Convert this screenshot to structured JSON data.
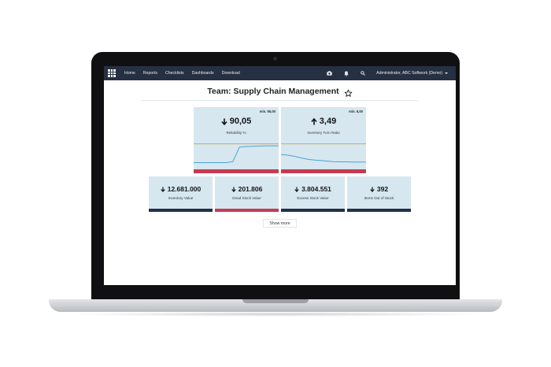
{
  "nav": {
    "items": [
      "Home",
      "Reports",
      "Checklists",
      "Dashboards",
      "Download"
    ],
    "user": "Administrator, ABC Softwork (Demo)",
    "icons": [
      "apps-grid-icon",
      "camera-icon",
      "bell-icon",
      "search-icon"
    ]
  },
  "page": {
    "title": "Team: Supply Chain Management",
    "show_more": "Show more"
  },
  "kpis": [
    {
      "value": "90,05",
      "label": "Reliability %",
      "min": "min. 95,00",
      "direction": "down",
      "status": "alert",
      "series": {
        "actual": [
          0.22,
          0.22,
          0.22,
          0.22,
          0.22,
          0.22,
          0.26,
          0.8,
          0.82,
          0.83,
          0.84,
          0.85,
          0.85,
          0.85
        ],
        "threshold": 0.92
      }
    },
    {
      "value": "3,49",
      "label": "Inventory Turn Ratio",
      "min": "min. 6,00",
      "direction": "up",
      "status": "alert",
      "series": {
        "actual": [
          0.52,
          0.5,
          0.46,
          0.4,
          0.35,
          0.32,
          0.3,
          0.28,
          0.26,
          0.25,
          0.25,
          0.24,
          0.24,
          0.24
        ],
        "threshold": 0.92
      }
    },
    {
      "value": "12.681.000",
      "label": "Inventory Value",
      "direction": "down",
      "status": "neutral"
    },
    {
      "value": "201.806",
      "label": "Dead Stock Value",
      "direction": "down",
      "status": "alert"
    },
    {
      "value": "3.804.551",
      "label": "Excess Stock Value",
      "direction": "down",
      "status": "neutral"
    },
    {
      "value": "392",
      "label": "Items Out of Stock",
      "direction": "down",
      "status": "neutral"
    }
  ],
  "colors": {
    "navbar": "#263043",
    "tile_bg": "#d6e7f0",
    "alert_bar": "#c63a52",
    "neutral_bar": "#243049",
    "line_actual": "#4aa3d6",
    "line_threshold": "#c8a24a"
  }
}
